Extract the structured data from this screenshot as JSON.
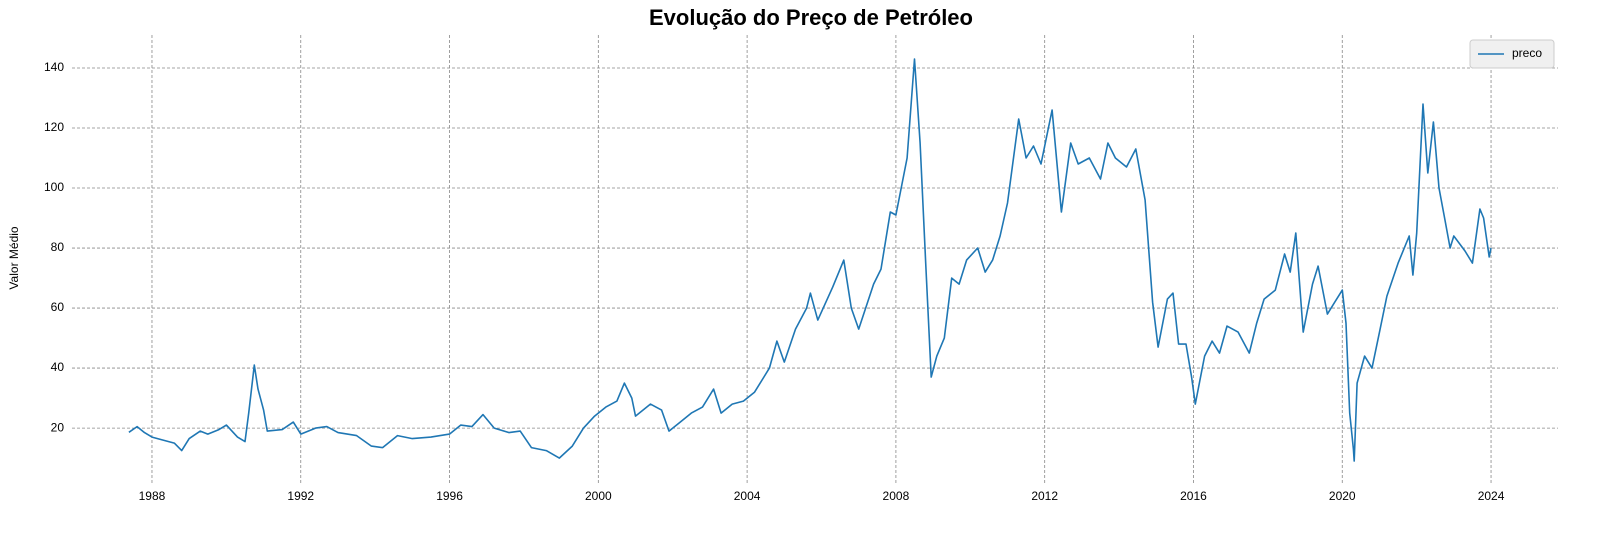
{
  "chart_data": {
    "type": "line",
    "title": "Evolução do Preço de Petróleo",
    "ylabel": "Valor Médio",
    "x": [
      1987.38,
      1987.6,
      1987.8,
      1988.0,
      1988.3,
      1988.6,
      1988.8,
      1989.0,
      1989.3,
      1989.5,
      1989.8,
      1990.0,
      1990.3,
      1990.5,
      1990.6,
      1990.75,
      1990.85,
      1991.0,
      1991.1,
      1991.5,
      1991.8,
      1992.0,
      1992.4,
      1992.7,
      1993.0,
      1993.5,
      1993.9,
      1994.2,
      1994.6,
      1995.0,
      1995.5,
      1996.0,
      1996.3,
      1996.6,
      1996.9,
      1997.2,
      1997.6,
      1997.9,
      1998.2,
      1998.6,
      1998.95,
      1999.3,
      1999.6,
      1999.9,
      2000.2,
      2000.5,
      2000.7,
      2000.9,
      2001.0,
      2001.4,
      2001.7,
      2001.9,
      2002.2,
      2002.5,
      2002.8,
      2003.1,
      2003.3,
      2003.6,
      2003.9,
      2004.2,
      2004.6,
      2004.8,
      2005.0,
      2005.3,
      2005.6,
      2005.7,
      2005.9,
      2006.3,
      2006.6,
      2006.8,
      2007.0,
      2007.4,
      2007.6,
      2007.85,
      2008.0,
      2008.3,
      2008.5,
      2008.65,
      2008.8,
      2008.95,
      2009.1,
      2009.3,
      2009.5,
      2009.7,
      2009.9,
      2010.2,
      2010.4,
      2010.6,
      2010.8,
      2011.0,
      2011.3,
      2011.5,
      2011.7,
      2011.9,
      2012.2,
      2012.45,
      2012.7,
      2012.9,
      2013.2,
      2013.5,
      2013.7,
      2013.9,
      2014.2,
      2014.45,
      2014.7,
      2014.9,
      2015.05,
      2015.3,
      2015.45,
      2015.6,
      2015.8,
      2015.95,
      2016.05,
      2016.3,
      2016.5,
      2016.7,
      2016.9,
      2017.2,
      2017.5,
      2017.7,
      2017.9,
      2018.2,
      2018.45,
      2018.6,
      2018.75,
      2018.95,
      2019.2,
      2019.35,
      2019.6,
      2019.8,
      2020.0,
      2020.1,
      2020.2,
      2020.3,
      2020.32,
      2020.4,
      2020.6,
      2020.8,
      2021.0,
      2021.2,
      2021.5,
      2021.8,
      2021.9,
      2022.0,
      2022.17,
      2022.3,
      2022.45,
      2022.6,
      2022.75,
      2022.9,
      2023.0,
      2023.3,
      2023.5,
      2023.7,
      2023.8,
      2023.95,
      2024.0
    ],
    "series": [
      {
        "name": "preco",
        "color": "#1f77b4",
        "values": [
          18.6,
          20.5,
          18.5,
          17,
          16,
          15,
          12.5,
          16.5,
          19,
          18,
          19.5,
          21,
          17,
          15.5,
          25,
          41,
          33,
          26,
          19,
          19.5,
          22,
          18,
          20,
          20.5,
          18.5,
          17.5,
          14,
          13.5,
          17.5,
          16.5,
          17,
          18,
          21,
          20.5,
          24.5,
          20,
          18.5,
          19,
          13.5,
          12.5,
          10,
          14,
          20,
          24,
          27,
          29,
          35,
          30,
          24,
          28,
          26,
          19,
          22,
          25,
          27,
          33,
          25,
          28,
          29,
          32,
          40,
          49,
          42,
          53,
          60,
          65,
          56,
          67,
          76,
          60,
          53,
          68,
          73,
          92,
          91,
          110,
          143,
          115,
          75,
          37,
          44,
          50,
          70,
          68,
          76,
          80,
          72,
          76,
          84,
          95,
          123,
          110,
          114,
          108,
          126,
          92,
          115,
          108,
          110,
          103,
          115,
          110,
          107,
          113,
          96,
          62,
          47,
          63,
          65,
          48,
          48,
          37,
          28,
          44,
          49,
          45,
          54,
          52,
          45,
          55,
          63,
          66,
          78,
          72,
          85,
          52,
          68,
          74,
          58,
          62,
          66,
          55,
          25,
          13,
          9,
          35,
          44,
          40,
          52,
          64,
          75,
          84,
          71,
          85,
          128,
          105,
          122,
          100,
          90,
          80,
          84,
          79,
          75,
          93,
          90,
          77,
          80
        ]
      }
    ],
    "xlim": [
      1985.85,
      2025.8
    ],
    "xticks": [
      1988,
      1992,
      1996,
      2000,
      2004,
      2008,
      2012,
      2016,
      2020,
      2024
    ],
    "ylim": [
      1.7,
      151
    ],
    "yticks": [
      20,
      40,
      60,
      80,
      100,
      120,
      140
    ],
    "grid": true,
    "legend": "upper right"
  }
}
